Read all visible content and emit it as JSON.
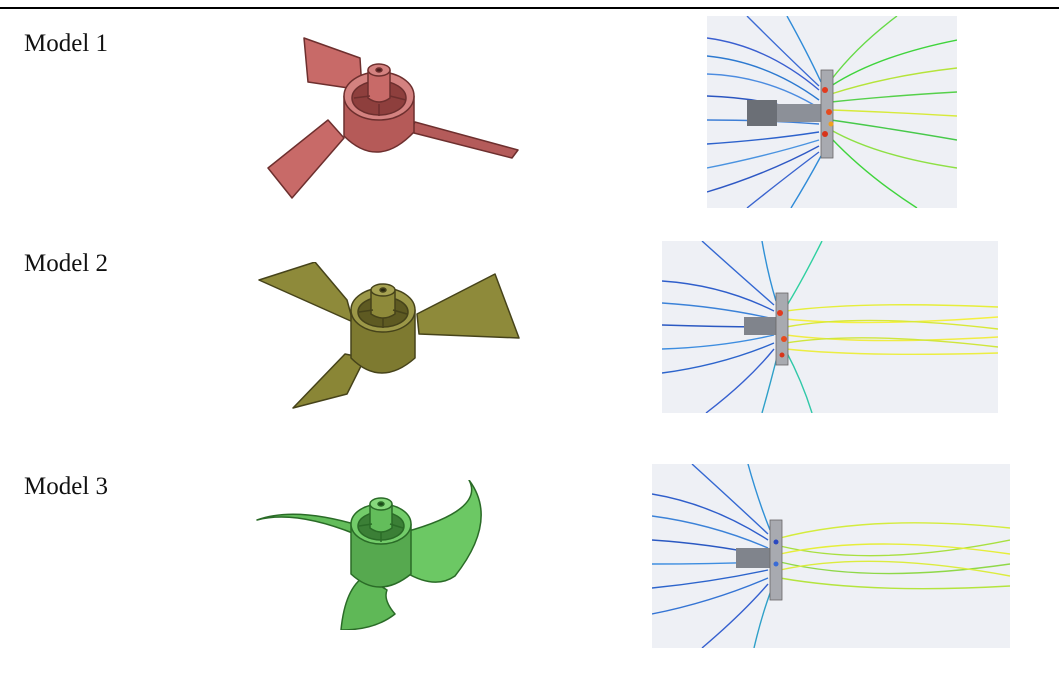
{
  "rows": [
    {
      "label": "Model 1",
      "fan_color": "#c86a68",
      "fan_edge": "#6d2f2e",
      "flow_dominant": "green"
    },
    {
      "label": "Model 2",
      "fan_color": "#8e8a3a",
      "fan_edge": "#46431a",
      "flow_dominant": "yellow"
    },
    {
      "label": "Model 3",
      "fan_color": "#63bd5b",
      "fan_edge": "#2a6b27",
      "flow_dominant": "yellow-green"
    }
  ]
}
